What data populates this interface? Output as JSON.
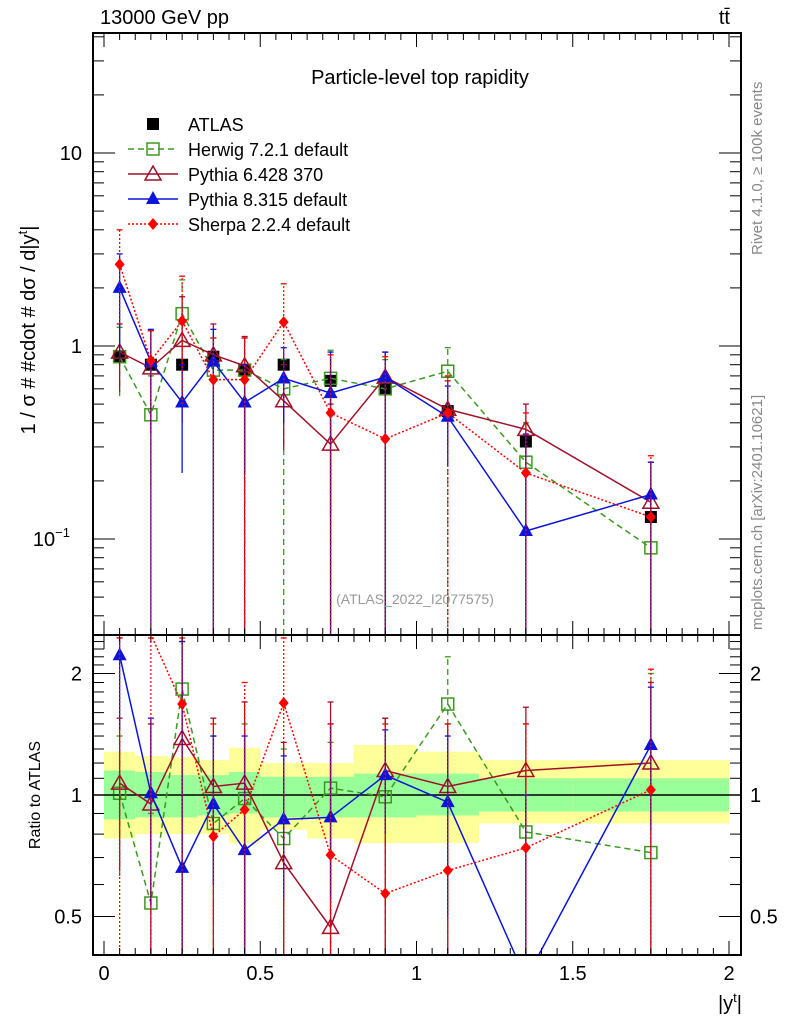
{
  "header": {
    "energy_label": "13000 GeV pp",
    "process_label": "tt̄",
    "side_label_top": "Rivet 4.1.0, ≥ 100k events",
    "side_label_bottom": "mcplots.cern.ch [arXiv:2401.10621]",
    "analysis_id": "(ATLAS_2022_I2077575)"
  },
  "chart_data": [
    {
      "type": "scatter",
      "panel": "main",
      "title": "Particle-level top rapidity",
      "xlabel": "|y^t|",
      "ylabel": "1 / σ # #cdot # dσ / d|y^t|",
      "xlim": [
        -0.04,
        2.04
      ],
      "ylim": [
        0.033,
        45
      ],
      "yscale": "log",
      "ytick_labels": [
        "10^-1",
        "1",
        "10"
      ],
      "yticks": [
        0.1,
        1,
        10
      ],
      "legend_position": "top-left",
      "x": [
        0.05,
        0.15,
        0.25,
        0.35,
        0.45,
        0.575,
        0.725,
        0.9,
        1.1,
        1.35,
        1.75
      ],
      "series": [
        {
          "name": "ATLAS",
          "color": "#000000",
          "marker": "square-filled",
          "line": "none",
          "values": [
            0.88,
            0.8,
            0.8,
            0.88,
            0.75,
            0.8,
            0.66,
            0.6,
            0.46,
            0.32,
            0.13
          ]
        },
        {
          "name": "Herwig 7.2.1 default",
          "color": "#3a9a1e",
          "marker": "square-open",
          "line": "dashed",
          "values": [
            0.88,
            0.44,
            1.47,
            0.75,
            0.75,
            0.6,
            0.68,
            0.6,
            0.74,
            0.25,
            0.09
          ],
          "err_lo": [
            0.55,
            0.19,
            0.75,
            0.0,
            0.0,
            0.0,
            0.0,
            0.0,
            0.0,
            0.0,
            0.04
          ],
          "err_hi": [
            1.25,
            0.7,
            2.2,
            1.1,
            1.1,
            0.85,
            0.95,
            0.85,
            0.98,
            0.4,
            0.25
          ]
        },
        {
          "name": "Pythia 6.428 370",
          "color": "#a0102a",
          "marker": "triangle-open",
          "line": "solid",
          "values": [
            0.93,
            0.77,
            1.07,
            0.9,
            0.79,
            0.52,
            0.31,
            0.69,
            0.47,
            0.37,
            0.155
          ],
          "err_lo": [
            0.58,
            0.35,
            0.4,
            0.0,
            0.0,
            0.29,
            0.13,
            0.0,
            0.3,
            0.0,
            0.0
          ],
          "err_hi": [
            1.3,
            1.2,
            1.8,
            1.3,
            1.12,
            0.8,
            0.5,
            0.93,
            0.66,
            0.5,
            0.25
          ]
        },
        {
          "name": "Pythia 8.315 default",
          "color": "#0a14dc",
          "marker": "triangle-filled",
          "line": "solid",
          "values": [
            2.0,
            0.83,
            0.51,
            0.83,
            0.51,
            0.68,
            0.57,
            0.69,
            0.43,
            0.11,
            0.17
          ],
          "err_lo": [
            0.85,
            0.0,
            0.22,
            0.0,
            0.22,
            0.4,
            0.0,
            0.0,
            0.24,
            0.0,
            0.0
          ],
          "err_hi": [
            3.0,
            1.22,
            0.8,
            1.22,
            0.8,
            0.98,
            0.93,
            0.93,
            0.62,
            0.35,
            0.25
          ]
        },
        {
          "name": "Sherpa 2.2.4 default",
          "color": "#ff0000",
          "marker": "diamond-filled",
          "line": "dotted",
          "values": [
            2.65,
            0.84,
            1.35,
            0.67,
            0.67,
            1.33,
            0.45,
            0.33,
            0.45,
            0.22,
            0.13
          ],
          "err_lo": [
            1.3,
            0.0,
            0.5,
            0.0,
            0.0,
            0.5,
            0.0,
            0.0,
            0.0,
            0.0,
            0.0
          ],
          "err_hi": [
            4.0,
            1.2,
            2.3,
            1.1,
            1.1,
            2.1,
            0.9,
            0.88,
            0.7,
            0.45,
            0.27
          ]
        }
      ]
    },
    {
      "type": "scatter",
      "panel": "ratio",
      "ylabel": "Ratio to ATLAS",
      "xlabel": "|y^t|",
      "xlim": [
        -0.04,
        2.04
      ],
      "ylim": [
        0.42,
        2.45
      ],
      "yscale": "log",
      "yticks": [
        0.5,
        1,
        2
      ],
      "ytick_labels": [
        "0.5",
        "1",
        "2"
      ],
      "xticks": [
        0,
        0.5,
        1,
        1.5,
        2
      ],
      "xtick_labels": [
        "0",
        "0.5",
        "1",
        "1.5",
        "2"
      ],
      "bins": [
        [
          0,
          0.1
        ],
        [
          0.1,
          0.2
        ],
        [
          0.2,
          0.3
        ],
        [
          0.3,
          0.4
        ],
        [
          0.4,
          0.5
        ],
        [
          0.5,
          0.65
        ],
        [
          0.65,
          0.8
        ],
        [
          0.8,
          1.0
        ],
        [
          1.0,
          1.2
        ],
        [
          1.2,
          1.5
        ],
        [
          1.5,
          2.0
        ]
      ],
      "band_inner": {
        "color": "#99ff99",
        "lo": [
          0.87,
          0.88,
          0.88,
          0.89,
          0.9,
          0.88,
          0.88,
          0.88,
          0.89,
          0.91,
          0.91
        ],
        "hi": [
          1.15,
          1.14,
          1.12,
          1.12,
          1.14,
          1.11,
          1.11,
          1.13,
          1.13,
          1.1,
          1.1
        ]
      },
      "band_outer": {
        "color": "#ffff99",
        "lo": [
          0.78,
          0.8,
          0.8,
          0.8,
          0.76,
          0.82,
          0.78,
          0.76,
          0.76,
          0.85,
          0.85
        ],
        "hi": [
          1.28,
          1.25,
          1.24,
          1.22,
          1.31,
          1.2,
          1.2,
          1.33,
          1.28,
          1.22,
          1.22
        ]
      },
      "x": [
        0.05,
        0.15,
        0.25,
        0.35,
        0.45,
        0.575,
        0.725,
        0.9,
        1.1,
        1.35,
        1.75
      ],
      "series": [
        {
          "name": "Herwig 7.2.1 default",
          "color": "#3a9a1e",
          "marker": "square-open",
          "line": "dashed",
          "values": [
            1.01,
            0.54,
            1.83,
            0.85,
            0.98,
            0.78,
            1.04,
            0.99,
            1.68,
            0.81,
            0.72
          ],
          "err_lo": [
            0.63,
            0.3,
            0.3,
            0.3,
            0.3,
            0.3,
            0.3,
            0.3,
            0.3,
            0.3,
            0.3
          ],
          "err_hi": [
            1.4,
            0.9,
            2.5,
            1.4,
            1.5,
            1.3,
            1.35,
            1.55,
            2.2,
            1.5,
            2.0
          ]
        },
        {
          "name": "Pythia 6.428 370",
          "color": "#a0102a",
          "marker": "triangle-open",
          "line": "solid",
          "values": [
            1.07,
            0.95,
            1.38,
            1.05,
            1.07,
            0.68,
            0.47,
            1.15,
            1.05,
            1.15,
            1.2
          ],
          "err_lo": [
            0.65,
            0.4,
            0.4,
            0.4,
            0.4,
            0.4,
            0.4,
            0.4,
            0.4,
            0.4,
            0.4
          ],
          "err_hi": [
            1.55,
            1.5,
            2.4,
            1.55,
            1.7,
            1.35,
            1.7,
            1.55,
            1.5,
            1.65,
            1.9
          ]
        },
        {
          "name": "Pythia 8.315 default",
          "color": "#0a14dc",
          "marker": "triangle-filled",
          "line": "solid",
          "values": [
            2.22,
            1.01,
            0.66,
            0.95,
            0.73,
            0.87,
            0.88,
            1.12,
            0.96,
            0.35,
            1.33
          ],
          "err_lo": [
            1.45,
            0.53,
            0.4,
            0.6,
            0.4,
            0.55,
            0.55,
            0.8,
            0.5,
            0.3,
            0.82
          ],
          "err_hi": [
            2.45,
            1.55,
            2.4,
            1.4,
            1.4,
            1.25,
            1.5,
            1.45,
            1.4,
            1.0,
            1.85
          ]
        },
        {
          "name": "Sherpa 2.2.4 default",
          "color": "#ff0000",
          "marker": "diamond-filled",
          "line": "dotted",
          "values": [
            3.0,
            2.5,
            1.68,
            0.79,
            0.92,
            1.69,
            0.71,
            0.57,
            0.65,
            0.74,
            1.03
          ],
          "err_lo": [
            0.4,
            0.4,
            0.4,
            0.4,
            0.4,
            0.4,
            0.4,
            0.4,
            0.4,
            0.4,
            0.4
          ],
          "err_hi": [
            2.45,
            2.45,
            2.45,
            1.5,
            1.9,
            2.45,
            1.5,
            1.5,
            1.5,
            1.5,
            2.05
          ]
        }
      ]
    }
  ]
}
